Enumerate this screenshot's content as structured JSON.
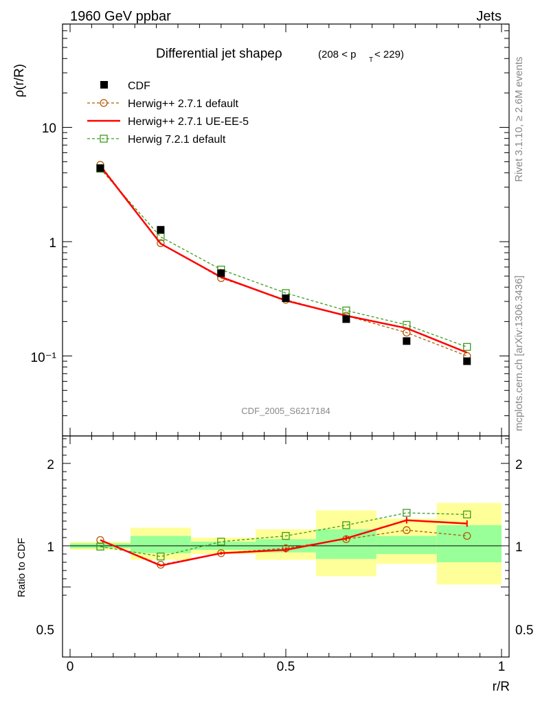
{
  "header": {
    "left": "1960 GeV ppbar",
    "right": "Jets"
  },
  "side_text": {
    "top": "Rivet 3.1.10, ≥ 2.6M events",
    "bottom": "mcplots.cern.ch [arXiv:1306.3436]"
  },
  "watermark": "CDF_2005_S6217184",
  "colors": {
    "cdf": "#000000",
    "herwig_default": "#b35900",
    "herwig_ueee5": "#ff0000",
    "herwig7": "#3a9b1a",
    "band_inner": "#99ff99",
    "band_outer": "#ffff99"
  },
  "chart_data": [
    {
      "type": "scatter",
      "title": "Differential jet shapeρ",
      "title_suffix": "(208 < p",
      "title_sub": "T",
      "title_end": " < 229)",
      "ylabel": "ρ(r/R)",
      "yscale": "log",
      "ylim": [
        0.025,
        50
      ],
      "xlim": [
        0,
        1
      ],
      "ytick_labels": [
        "10",
        "1",
        "10⁻¹"
      ],
      "legend": {
        "placement": "top-left",
        "entries": [
          "CDF",
          "Herwig++ 2.7.1 default",
          "Herwig++ 2.7.1 UE-EE-5",
          "Herwig 7.2.1 default"
        ]
      },
      "x": [
        0.07,
        0.21,
        0.35,
        0.5,
        0.64,
        0.78,
        0.92
      ],
      "series": [
        {
          "name": "CDF",
          "marker": "filled-square",
          "values": [
            4.4,
            1.27,
            0.53,
            0.32,
            0.21,
            0.135,
            0.09
          ]
        },
        {
          "name": "Herwig++ 2.7.1 default",
          "marker": "open-circle",
          "line": "dashed",
          "values": [
            4.7,
            0.97,
            0.48,
            0.31,
            0.225,
            0.16,
            0.1
          ]
        },
        {
          "name": "Herwig++ 2.7.1 UE-EE-5",
          "marker": "none",
          "line": "solid",
          "values": [
            4.6,
            0.96,
            0.49,
            0.305,
            0.225,
            0.175,
            0.107
          ]
        },
        {
          "name": "Herwig 7.2.1 default",
          "marker": "open-square",
          "line": "dashed",
          "values": [
            4.35,
            1.1,
            0.57,
            0.355,
            0.25,
            0.187,
            0.12
          ]
        }
      ]
    },
    {
      "type": "line",
      "ylabel": "Ratio to CDF",
      "xlabel": "r/R",
      "ylim": [
        0.4,
        2.4
      ],
      "xlim": [
        0,
        1
      ],
      "ytick_labels": [
        "2",
        "1",
        "0.5"
      ],
      "xtick_labels": [
        "0",
        "0.5",
        "1"
      ],
      "reference_line": 1,
      "bins": [
        [
          0,
          0.14
        ],
        [
          0.14,
          0.28
        ],
        [
          0.28,
          0.43
        ],
        [
          0.43,
          0.57
        ],
        [
          0.57,
          0.71
        ],
        [
          0.71,
          0.85
        ],
        [
          0.85,
          1.0
        ]
      ],
      "band_inner": [
        [
          0.97,
          1.03
        ],
        [
          0.91,
          1.12
        ],
        [
          0.95,
          1.05
        ],
        [
          0.92,
          1.08
        ],
        [
          0.84,
          1.2
        ],
        [
          0.9,
          1.12
        ],
        [
          0.8,
          1.25
        ]
      ],
      "band_outer": [
        [
          0.95,
          1.05
        ],
        [
          0.83,
          1.22
        ],
        [
          0.9,
          1.1
        ],
        [
          0.83,
          1.2
        ],
        [
          0.63,
          1.43
        ],
        [
          0.78,
          1.33
        ],
        [
          0.53,
          1.52
        ]
      ],
      "x": [
        0.07,
        0.21,
        0.35,
        0.5,
        0.64,
        0.78,
        0.92
      ],
      "series": [
        {
          "name": "Herwig++ 2.7.1 default",
          "values": [
            1.07,
            0.77,
            0.91,
            0.97,
            1.08,
            1.19,
            1.12
          ]
        },
        {
          "name": "Herwig++ 2.7.1 UE-EE-5",
          "values": [
            1.07,
            0.76,
            0.91,
            0.95,
            1.09,
            1.31,
            1.27
          ],
          "errors": [
            0,
            0.01,
            0.02,
            0.03,
            0.03,
            0.04,
            0.04
          ]
        },
        {
          "name": "Herwig 7.2.1 default",
          "values": [
            0.99,
            0.87,
            1.05,
            1.12,
            1.25,
            1.4,
            1.38
          ]
        }
      ]
    }
  ]
}
